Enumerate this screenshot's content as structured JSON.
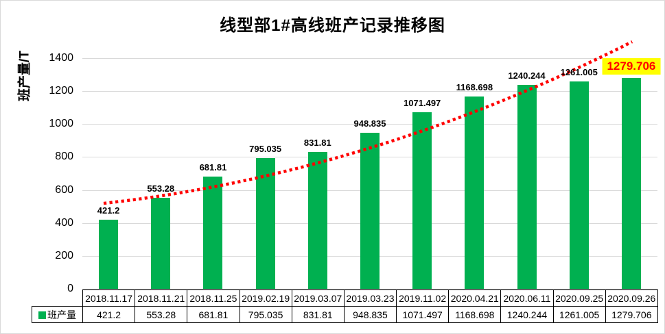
{
  "chart_data": {
    "type": "bar",
    "title": "线型部1#高线班产记录推移图",
    "ylabel": "班产量/T",
    "legend_label": "班产量",
    "categories": [
      "2018.11.17",
      "2018.11.21",
      "2018.11.25",
      "2019.02.19",
      "2019.03.07",
      "2019.03.23",
      "2019.11.02",
      "2020.04.21",
      "2020.06.11",
      "2020.09.25",
      "2020.09.26"
    ],
    "values": [
      421.2,
      553.28,
      681.81,
      795.035,
      831.81,
      948.835,
      1071.497,
      1168.698,
      1240.244,
      1261.005,
      1279.706
    ],
    "value_labels": [
      "421.2",
      "553.28",
      "681.81",
      "795.035",
      "831.81",
      "948.835",
      "1071.497",
      "1168.698",
      "1240.244",
      "1261.005",
      "1279.706"
    ],
    "ylim": [
      0,
      1500
    ],
    "ytick_step": 200,
    "yticks": [
      "0",
      "200",
      "400",
      "600",
      "800",
      "1000",
      "1200",
      "1400"
    ],
    "grid": true,
    "legend_position": "bottom-data-table",
    "data_table": {
      "show": true
    },
    "colors": {
      "bar": "#00B050",
      "trendline": "#FF0000",
      "gridline": "#D9D9D9",
      "axis_line": "#BFBFBF",
      "table_border": "#000000",
      "text": "#000000",
      "highlight_background": "#FFFF00",
      "highlight_text": "#FF0000"
    },
    "last_label_highlighted": true,
    "trendline": {
      "style": "dotted",
      "color": "#FF0000",
      "curve_points": [
        {
          "x_frac": 0.037,
          "value": 519
        },
        {
          "x_frac": 0.497,
          "value": 852
        },
        {
          "x_frac": 0.956,
          "value": 1500
        }
      ]
    }
  }
}
